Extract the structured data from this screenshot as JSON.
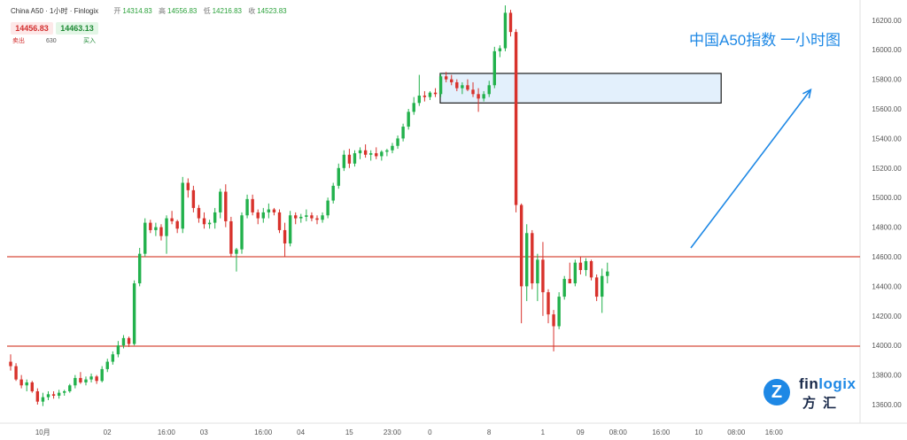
{
  "header": {
    "symbol": "China A50 · 1小时 · Finlogix",
    "ohlc": [
      {
        "label": "开",
        "value": "14314.83"
      },
      {
        "label": "高",
        "value": "14556.83"
      },
      {
        "label": "低",
        "value": "14216.83"
      },
      {
        "label": "收",
        "value": "14523.83"
      }
    ]
  },
  "trade": {
    "sell_price": "14456.83",
    "buy_price": "14463.13",
    "sell_label": "卖出",
    "quantity": "630",
    "buy_label": "买入"
  },
  "annotation_title": "中国A50指数 一小时图",
  "logo": {
    "brand_pre": "fin",
    "brand_hl": "logix",
    "brand_cn": "方汇",
    "mark_icon": "finlogix-mark-icon"
  },
  "colors": {
    "up": "#22b14c",
    "down": "#d8322c",
    "level": "#d84a3a",
    "arrow": "#1e88e5",
    "zone_fill": "#e3f0fc"
  },
  "chart_data": {
    "type": "candlestick",
    "title": "中国A50指数 一小时图",
    "xlabel": "",
    "ylabel": "",
    "ylim": [
      13500,
      16300
    ],
    "grid": false,
    "y_ticks": [
      13600,
      13800,
      14000,
      14200,
      14400,
      14600,
      14800,
      15000,
      15200,
      15400,
      15600,
      15800,
      16000,
      16200
    ],
    "y_tick_labels": [
      "13600.00",
      "13800.00",
      "14000.00",
      "14200.00",
      "14400.00",
      "14600.00",
      "14800.00",
      "15000.00",
      "15200.00",
      "15400.00",
      "15600.00",
      "15800.00",
      "16000.00",
      "16200.00"
    ],
    "x_ticks": [
      {
        "i": 4,
        "label": "10月"
      },
      {
        "i": 16,
        "label": "02"
      },
      {
        "i": 27,
        "label": "16:00"
      },
      {
        "i": 34,
        "label": "03"
      },
      {
        "i": 45,
        "label": "16:00"
      },
      {
        "i": 52,
        "label": "04"
      },
      {
        "i": 61,
        "label": "15"
      },
      {
        "i": 69,
        "label": "23:00"
      },
      {
        "i": 76,
        "label": "0"
      },
      {
        "i": 87,
        "label": "8"
      },
      {
        "i": 97,
        "label": "1"
      },
      {
        "i": 104,
        "label": "09"
      },
      {
        "i": 111,
        "label": "08:00"
      },
      {
        "i": 119,
        "label": "16:00"
      },
      {
        "i": 126,
        "label": "10"
      },
      {
        "i": 133,
        "label": "08:00"
      },
      {
        "i": 140,
        "label": "16:00"
      }
    ],
    "horizontal_levels": [
      14600,
      13995
    ],
    "zone": {
      "from_index": 71,
      "to_index": 138,
      "low": 15640,
      "high": 15840
    },
    "trend_arrow": {
      "from": {
        "i": 114,
        "price": 14660
      },
      "to": {
        "i": 133,
        "price": 15730
      }
    },
    "candles": [
      [
        13890,
        13940,
        13830,
        13860
      ],
      [
        13860,
        13880,
        13760,
        13770
      ],
      [
        13770,
        13800,
        13710,
        13730
      ],
      [
        13730,
        13770,
        13690,
        13750
      ],
      [
        13750,
        13760,
        13680,
        13690
      ],
      [
        13690,
        13710,
        13600,
        13620
      ],
      [
        13620,
        13680,
        13590,
        13650
      ],
      [
        13650,
        13690,
        13630,
        13670
      ],
      [
        13670,
        13690,
        13640,
        13660
      ],
      [
        13660,
        13700,
        13640,
        13680
      ],
      [
        13680,
        13700,
        13660,
        13690
      ],
      [
        13690,
        13740,
        13680,
        13730
      ],
      [
        13730,
        13800,
        13710,
        13780
      ],
      [
        13780,
        13820,
        13740,
        13750
      ],
      [
        13750,
        13790,
        13730,
        13770
      ],
      [
        13770,
        13810,
        13750,
        13790
      ],
      [
        13790,
        13800,
        13740,
        13760
      ],
      [
        13760,
        13860,
        13750,
        13840
      ],
      [
        13840,
        13910,
        13820,
        13890
      ],
      [
        13890,
        13960,
        13870,
        13940
      ],
      [
        13940,
        14030,
        13920,
        14000
      ],
      [
        14000,
        14070,
        13980,
        14050
      ],
      [
        14050,
        14060,
        13990,
        14010
      ],
      [
        14010,
        14440,
        14000,
        14420
      ],
      [
        14420,
        14660,
        14400,
        14620
      ],
      [
        14620,
        14860,
        14600,
        14830
      ],
      [
        14830,
        14850,
        14760,
        14780
      ],
      [
        14780,
        14830,
        14740,
        14800
      ],
      [
        14800,
        14820,
        14710,
        14740
      ],
      [
        14740,
        14880,
        14620,
        14860
      ],
      [
        14860,
        14910,
        14820,
        14840
      ],
      [
        14840,
        14850,
        14760,
        14790
      ],
      [
        14790,
        15140,
        14760,
        15100
      ],
      [
        15100,
        15130,
        15000,
        15050
      ],
      [
        15050,
        15080,
        14900,
        14930
      ],
      [
        14930,
        14950,
        14830,
        14860
      ],
      [
        14860,
        14900,
        14790,
        14820
      ],
      [
        14820,
        14850,
        14790,
        14830
      ],
      [
        14830,
        14930,
        14790,
        14900
      ],
      [
        14900,
        15060,
        14860,
        15040
      ],
      [
        15040,
        15090,
        14800,
        14840
      ],
      [
        14840,
        14870,
        14600,
        14620
      ],
      [
        14620,
        14660,
        14500,
        14650
      ],
      [
        14650,
        14900,
        14620,
        14880
      ],
      [
        14880,
        15020,
        14860,
        14990
      ],
      [
        14990,
        15020,
        14880,
        14900
      ],
      [
        14900,
        14920,
        14820,
        14860
      ],
      [
        14860,
        14930,
        14830,
        14900
      ],
      [
        14900,
        14960,
        14860,
        14920
      ],
      [
        14920,
        14930,
        14880,
        14900
      ],
      [
        14900,
        14920,
        14760,
        14780
      ],
      [
        14780,
        14830,
        14600,
        14690
      ],
      [
        14690,
        14910,
        14670,
        14880
      ],
      [
        14880,
        14900,
        14820,
        14860
      ],
      [
        14860,
        14890,
        14830,
        14870
      ],
      [
        14870,
        14920,
        14840,
        14880
      ],
      [
        14880,
        14900,
        14840,
        14860
      ],
      [
        14860,
        14880,
        14820,
        14850
      ],
      [
        14850,
        14900,
        14830,
        14880
      ],
      [
        14880,
        15000,
        14860,
        14980
      ],
      [
        14980,
        15100,
        14960,
        15080
      ],
      [
        15080,
        15230,
        15060,
        15200
      ],
      [
        15200,
        15320,
        15180,
        15290
      ],
      [
        15290,
        15330,
        15200,
        15230
      ],
      [
        15230,
        15320,
        15210,
        15300
      ],
      [
        15300,
        15340,
        15260,
        15320
      ],
      [
        15320,
        15360,
        15270,
        15290
      ],
      [
        15290,
        15320,
        15250,
        15300
      ],
      [
        15300,
        15340,
        15260,
        15280
      ],
      [
        15280,
        15320,
        15250,
        15310
      ],
      [
        15310,
        15330,
        15280,
        15320
      ],
      [
        15320,
        15370,
        15300,
        15350
      ],
      [
        15350,
        15420,
        15330,
        15400
      ],
      [
        15400,
        15500,
        15380,
        15480
      ],
      [
        15480,
        15600,
        15460,
        15580
      ],
      [
        15580,
        15680,
        15560,
        15640
      ],
      [
        15640,
        15830,
        15620,
        15690
      ],
      [
        15690,
        15720,
        15650,
        15680
      ],
      [
        15680,
        15720,
        15660,
        15710
      ],
      [
        15710,
        15740,
        15680,
        15700
      ],
      [
        15700,
        15840,
        15680,
        15820
      ],
      [
        15820,
        15850,
        15780,
        15800
      ],
      [
        15800,
        15830,
        15760,
        15780
      ],
      [
        15780,
        15800,
        15720,
        15740
      ],
      [
        15740,
        15780,
        15700,
        15760
      ],
      [
        15760,
        15800,
        15720,
        15730
      ],
      [
        15730,
        15780,
        15680,
        15700
      ],
      [
        15700,
        15740,
        15580,
        15670
      ],
      [
        15670,
        15720,
        15650,
        15700
      ],
      [
        15700,
        15790,
        15680,
        15760
      ],
      [
        15760,
        16020,
        15740,
        15990
      ],
      [
        15990,
        16030,
        15950,
        16010
      ],
      [
        16010,
        16300,
        15990,
        16250
      ],
      [
        16250,
        16270,
        16090,
        16120
      ],
      [
        16120,
        16140,
        14900,
        14950
      ],
      [
        14950,
        14960,
        14150,
        14400
      ],
      [
        14400,
        14820,
        14300,
        14760
      ],
      [
        14760,
        14780,
        14380,
        14420
      ],
      [
        14420,
        14620,
        14300,
        14580
      ],
      [
        14580,
        14700,
        14200,
        14360
      ],
      [
        14360,
        14380,
        14150,
        14210
      ],
      [
        14210,
        14240,
        13960,
        14130
      ],
      [
        14130,
        14360,
        14110,
        14330
      ],
      [
        14330,
        14470,
        14310,
        14450
      ],
      [
        14450,
        14560,
        14420,
        14420
      ],
      [
        14420,
        14580,
        14400,
        14560
      ],
      [
        14560,
        14600,
        14480,
        14510
      ],
      [
        14510,
        14590,
        14470,
        14570
      ],
      [
        14570,
        14580,
        14440,
        14460
      ],
      [
        14460,
        14480,
        14300,
        14330
      ],
      [
        14330,
        14520,
        14220,
        14470
      ],
      [
        14470,
        14560,
        14420,
        14500
      ]
    ]
  }
}
